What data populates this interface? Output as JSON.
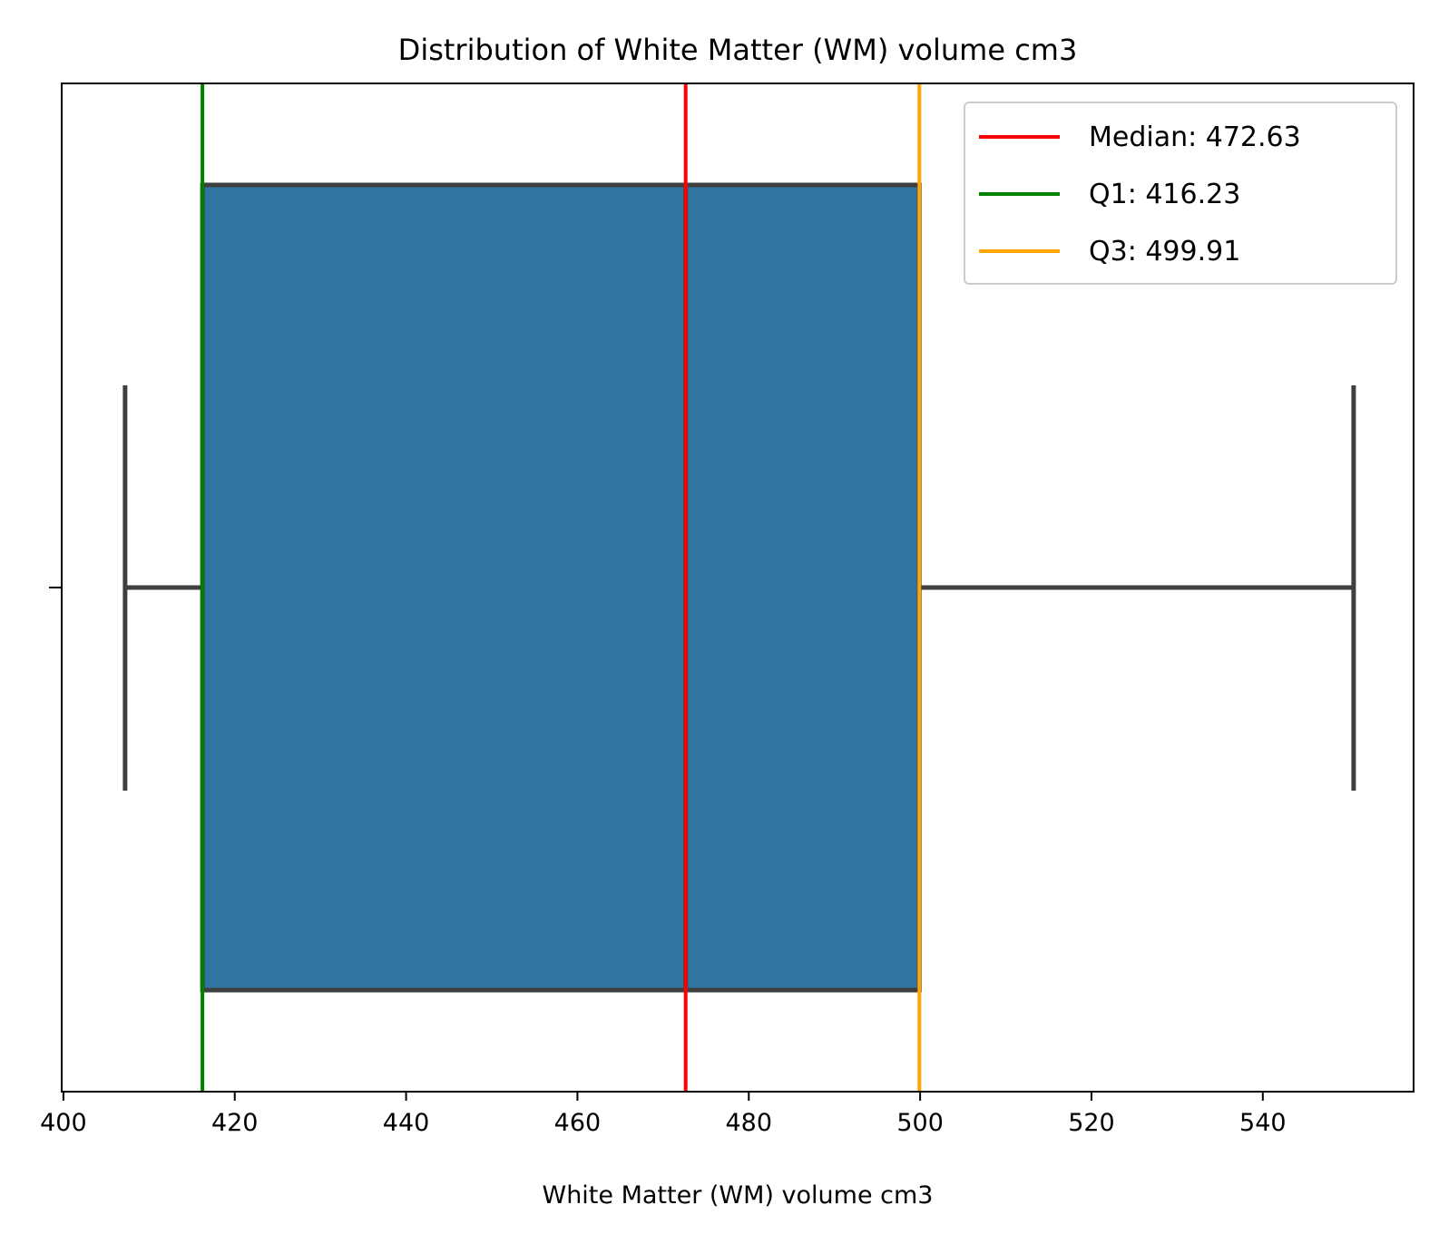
{
  "chart_data": {
    "type": "box",
    "title": "Distribution of White Matter (WM) volume cm3",
    "xlabel": "White Matter (WM) volume cm3",
    "xlim": [
      399.8,
      557.6
    ],
    "xticks": [
      400,
      420,
      440,
      460,
      480,
      500,
      520,
      540
    ],
    "box": {
      "whisker_low": 407.2,
      "q1": 416.23,
      "median": 472.63,
      "q3": 499.91,
      "whisker_high": 550.6,
      "fill": "#3274a1",
      "stroke": "#3f3f3f"
    },
    "reference_lines": [
      {
        "label": "Median: 472.63",
        "value": 472.63,
        "color": "#ff0000"
      },
      {
        "label": "Q1: 416.23",
        "value": 416.23,
        "color": "#008000"
      },
      {
        "label": "Q3: 499.91",
        "value": 499.91,
        "color": "#ffa500"
      }
    ],
    "legend_position": "top-right",
    "grid": false
  }
}
